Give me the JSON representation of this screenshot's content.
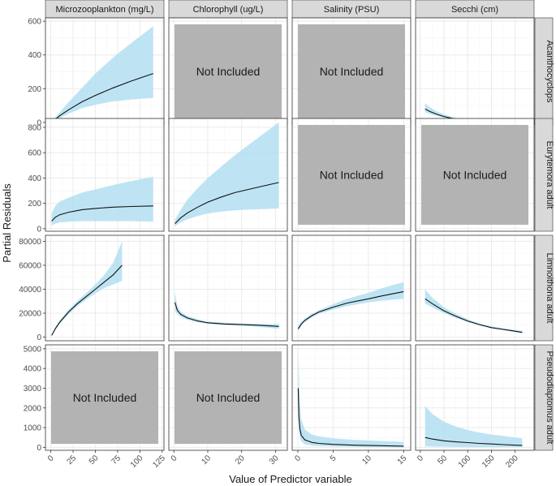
{
  "chart_data": {
    "type": "line",
    "title": "",
    "xlabel": "Value of Predictor variable",
    "ylabel": "Partial Residuals",
    "not_included_label": "Not Included",
    "colors": {
      "band": "#b3dff2",
      "line": "#111111",
      "not_included": "#b3b3b3",
      "strip": "#d9d9d9",
      "grid_major": "#ebebeb",
      "grid_minor": "#f5f5f5"
    },
    "columns": [
      {
        "name": "Microzooplankton (mg/L)",
        "xlim": [
          -6,
          127
        ],
        "ticks": [
          0,
          25,
          50,
          75,
          100,
          125
        ],
        "tick_labels": [
          "0",
          "25",
          "50",
          "75",
          "100",
          "125"
        ]
      },
      {
        "name": "Chlorophyll (ug/L)",
        "xlim": [
          -1.5,
          33.5
        ],
        "ticks": [
          0,
          10,
          20,
          30
        ],
        "tick_labels": [
          "0",
          "10",
          "20",
          "30"
        ]
      },
      {
        "name": "Salinity (PSU)",
        "xlim": [
          -0.8,
          16
        ],
        "ticks": [
          0,
          5,
          10,
          15
        ],
        "tick_labels": [
          "0",
          "5",
          "10",
          "15"
        ]
      },
      {
        "name": "Secchi (cm)",
        "xlim": [
          -10,
          240
        ],
        "ticks": [
          0,
          50,
          100,
          150,
          200
        ],
        "tick_labels": [
          "0",
          "50",
          "100",
          "150",
          "200"
        ]
      }
    ],
    "rows": [
      {
        "name": "Acanthocyclops",
        "ylim": [
          -15,
          620
        ],
        "ticks": [
          0,
          200,
          400,
          600
        ],
        "tick_labels": [
          "0",
          "200",
          "400",
          "600"
        ]
      },
      {
        "name": "Eurytemora adult",
        "ylim": [
          -20,
          870
        ],
        "ticks": [
          0,
          200,
          400,
          600,
          800
        ],
        "tick_labels": [
          "0",
          "200",
          "400",
          "600",
          "800"
        ]
      },
      {
        "name": "Limnoithona adult",
        "ylim": [
          -3000,
          85000
        ],
        "ticks": [
          0,
          20000,
          40000,
          60000,
          80000
        ],
        "tick_labels": [
          "0",
          "20000",
          "40000",
          "60000",
          "80000"
        ]
      },
      {
        "name": "Pseudodiaptomus adult",
        "ylim": [
          -150,
          5200
        ],
        "ticks": [
          0,
          1000,
          2000,
          3000,
          4000,
          5000
        ],
        "tick_labels": [
          "0",
          "1000",
          "2000",
          "3000",
          "4000",
          "5000"
        ]
      }
    ],
    "panels": [
      {
        "row": 0,
        "col": 0,
        "included": true,
        "x": [
          2,
          10,
          20,
          35,
          50,
          70,
          90,
          115
        ],
        "fit": [
          5,
          40,
          75,
          122,
          160,
          205,
          245,
          290
        ],
        "lower": [
          3,
          25,
          52,
          85,
          105,
          125,
          135,
          145
        ],
        "upper": [
          10,
          60,
          120,
          205,
          290,
          385,
          470,
          570
        ]
      },
      {
        "row": 0,
        "col": 1,
        "included": false
      },
      {
        "row": 0,
        "col": 2,
        "included": false
      },
      {
        "row": 0,
        "col": 3,
        "included": true,
        "x": [
          10,
          20,
          35,
          50,
          70,
          90,
          110,
          130,
          150,
          175,
          200,
          225
        ],
        "fit": [
          80,
          65,
          48,
          35,
          22,
          13,
          7,
          4,
          2,
          1,
          0,
          0
        ],
        "lower": [
          60,
          50,
          38,
          27,
          17,
          10,
          5,
          3,
          1,
          0,
          0,
          0
        ],
        "upper": [
          115,
          90,
          65,
          48,
          30,
          18,
          10,
          6,
          3,
          2,
          1,
          1
        ]
      },
      {
        "row": 1,
        "col": 0,
        "included": true,
        "x": [
          1,
          5,
          10,
          20,
          35,
          50,
          70,
          90,
          115
        ],
        "fit": [
          60,
          90,
          110,
          130,
          150,
          160,
          170,
          175,
          180
        ],
        "lower": [
          25,
          40,
          50,
          55,
          60,
          60,
          60,
          60,
          55
        ],
        "upper": [
          120,
          180,
          215,
          245,
          285,
          310,
          345,
          375,
          410
        ]
      },
      {
        "row": 1,
        "col": 1,
        "included": true,
        "x": [
          0.3,
          2,
          4,
          7,
          10,
          14,
          18,
          22,
          26,
          31
        ],
        "fit": [
          40,
          85,
          125,
          170,
          210,
          250,
          285,
          310,
          335,
          365
        ],
        "lower": [
          20,
          50,
          75,
          100,
          120,
          135,
          145,
          150,
          155,
          160
        ],
        "upper": [
          70,
          150,
          230,
          320,
          400,
          490,
          580,
          660,
          740,
          840
        ]
      },
      {
        "row": 1,
        "col": 2,
        "included": false
      },
      {
        "row": 1,
        "col": 3,
        "included": false
      },
      {
        "row": 2,
        "col": 0,
        "included": true,
        "x": [
          1,
          5,
          10,
          20,
          30,
          40,
          50,
          60,
          70,
          80
        ],
        "fit": [
          1500,
          7000,
          12500,
          21000,
          28000,
          34000,
          40000,
          46000,
          52000,
          60000
        ],
        "lower": [
          1000,
          6000,
          11000,
          19000,
          26000,
          31500,
          36500,
          41000,
          44000,
          47000
        ],
        "upper": [
          2000,
          8000,
          14000,
          23000,
          30500,
          37000,
          44000,
          52000,
          62000,
          80000
        ]
      },
      {
        "row": 2,
        "col": 1,
        "included": true,
        "x": [
          0.3,
          1,
          2,
          4,
          7,
          10,
          15,
          20,
          25,
          31
        ],
        "fit": [
          29000,
          22500,
          19000,
          16000,
          13500,
          12000,
          11000,
          10500,
          10000,
          9000
        ],
        "lower": [
          22000,
          19500,
          17000,
          14500,
          12500,
          11000,
          10000,
          9500,
          8500,
          7000
        ],
        "upper": [
          38000,
          26000,
          21500,
          17500,
          15000,
          13000,
          12000,
          11500,
          11000,
          11000
        ]
      },
      {
        "row": 2,
        "col": 2,
        "included": true,
        "x": [
          0.05,
          0.5,
          1,
          2,
          3,
          5,
          7,
          10,
          12,
          15
        ],
        "fit": [
          7000,
          11000,
          14000,
          18000,
          21000,
          25000,
          28500,
          32000,
          34500,
          38000
        ],
        "lower": [
          5000,
          9500,
          12500,
          16500,
          19500,
          23000,
          26000,
          29000,
          30500,
          32000
        ],
        "upper": [
          9500,
          13000,
          15500,
          19500,
          22500,
          27500,
          32000,
          37000,
          41000,
          46000
        ]
      },
      {
        "row": 2,
        "col": 3,
        "included": true,
        "x": [
          10,
          25,
          50,
          75,
          100,
          125,
          150,
          175,
          200,
          215
        ],
        "fit": [
          32000,
          28000,
          22000,
          17500,
          13500,
          10500,
          8000,
          6500,
          5000,
          4000
        ],
        "lower": [
          28000,
          25000,
          20000,
          16000,
          12500,
          9800,
          7500,
          5800,
          4200,
          3200
        ],
        "upper": [
          40000,
          33000,
          25000,
          19500,
          15000,
          11500,
          9000,
          7500,
          6000,
          5500
        ]
      },
      {
        "row": 3,
        "col": 0,
        "included": false
      },
      {
        "row": 3,
        "col": 1,
        "included": false
      },
      {
        "row": 3,
        "col": 2,
        "included": true,
        "x": [
          0.05,
          0.15,
          0.3,
          0.5,
          1,
          2,
          3,
          5,
          8,
          11,
          15
        ],
        "fit": [
          3000,
          1500,
          900,
          600,
          380,
          250,
          200,
          150,
          110,
          90,
          60
        ],
        "lower": [
          1800,
          800,
          500,
          300,
          150,
          90,
          70,
          40,
          20,
          10,
          0
        ],
        "upper": [
          5100,
          3500,
          2200,
          1400,
          900,
          650,
          560,
          460,
          380,
          330,
          280
        ]
      },
      {
        "row": 3,
        "col": 3,
        "included": true,
        "x": [
          10,
          25,
          50,
          75,
          100,
          125,
          150,
          175,
          200,
          215
        ],
        "fit": [
          500,
          420,
          330,
          280,
          240,
          200,
          170,
          140,
          110,
          100
        ],
        "lower": [
          50,
          40,
          30,
          20,
          15,
          12,
          10,
          10,
          10,
          10
        ],
        "upper": [
          2100,
          1700,
          1300,
          1050,
          880,
          750,
          650,
          580,
          500,
          460
        ]
      }
    ]
  }
}
